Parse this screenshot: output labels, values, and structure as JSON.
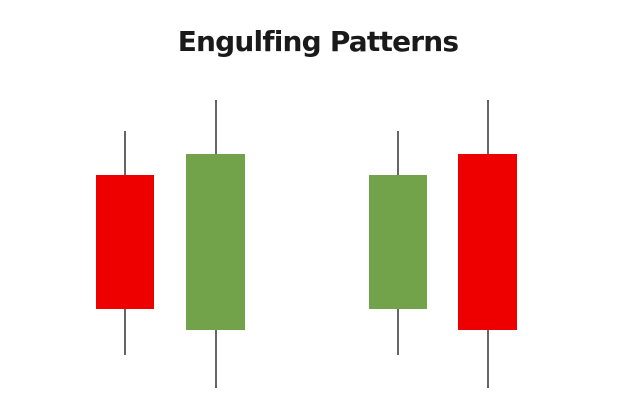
{
  "title": "Engulfing Patterns",
  "colors": {
    "bearish": "#ee0000",
    "bullish": "#72a34b",
    "wick": "#000000",
    "background": "#ffffff"
  },
  "patterns": [
    {
      "name": "bullish-engulfing",
      "candles": [
        {
          "type": "bearish",
          "color": "#ee0000"
        },
        {
          "type": "bullish",
          "color": "#72a34b"
        }
      ]
    },
    {
      "name": "bearish-engulfing",
      "candles": [
        {
          "type": "bullish",
          "color": "#72a34b"
        },
        {
          "type": "bearish",
          "color": "#ee0000"
        }
      ]
    }
  ]
}
